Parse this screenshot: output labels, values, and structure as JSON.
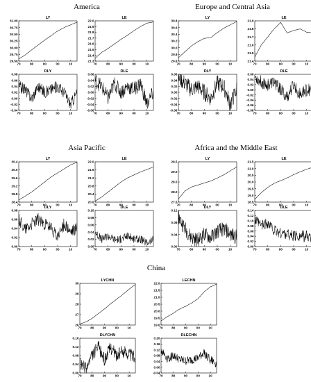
{
  "figure": {
    "regions": [
      {
        "title": "America"
      },
      {
        "title": "Europe and Central Asia"
      },
      {
        "title": "Asia Pacific"
      },
      {
        "title": "Africa and the Middle East"
      },
      {
        "title": "China"
      }
    ]
  },
  "chart_data": [
    {
      "type": "line",
      "region": "America",
      "title": "LY",
      "x": [
        1970,
        1975,
        1980,
        1985,
        1990,
        1995,
        2000,
        2005,
        2010,
        2015
      ],
      "ylim": [
        29.5,
        31.0
      ],
      "yticks": [
        "29.50",
        "29.75",
        "30.00",
        "30.25",
        "30.50",
        "30.75",
        "31.00"
      ],
      "xticks": [
        "70",
        "80",
        "90",
        "00",
        "10"
      ],
      "values": [
        29.58,
        29.73,
        29.92,
        30.1,
        30.28,
        30.45,
        30.62,
        30.75,
        30.85,
        30.95
      ]
    },
    {
      "type": "line",
      "region": "America",
      "title": "LE",
      "x": [
        1970,
        1975,
        1980,
        1985,
        1990,
        1995,
        2000,
        2005,
        2010,
        2015
      ],
      "ylim": [
        21.3,
        22.0
      ],
      "yticks": [
        "21.3",
        "21.4",
        "21.5",
        "21.6",
        "21.7",
        "21.8",
        "21.9",
        "22.0"
      ],
      "xticks": [
        "70",
        "80",
        "90",
        "00",
        "10"
      ],
      "values": [
        21.35,
        21.45,
        21.52,
        21.6,
        21.68,
        21.75,
        21.83,
        21.9,
        21.96,
        21.98
      ]
    },
    {
      "type": "line",
      "region": "America",
      "title": "DLY",
      "x": [
        1970,
        1975,
        1980,
        1985,
        1990,
        1995,
        2000,
        2005,
        2010,
        2015
      ],
      "ylim": [
        -0.04,
        0.08
      ],
      "yticks": [
        "-0.04",
        "-0.02",
        "0.00",
        "0.02",
        "0.04",
        "0.06",
        "0.08"
      ],
      "xticks": [
        "70",
        "80",
        "90",
        "00",
        "10"
      ],
      "values": [
        0.04,
        0.03,
        0.0,
        0.04,
        0.02,
        0.03,
        0.04,
        0.02,
        -0.02,
        0.02
      ]
    },
    {
      "type": "line",
      "region": "America",
      "title": "DLE",
      "x": [
        1970,
        1975,
        1980,
        1985,
        1990,
        1995,
        2000,
        2005,
        2010,
        2015
      ],
      "ylim": [
        -0.06,
        0.06
      ],
      "yticks": [
        "-0.06",
        "-0.04",
        "-0.02",
        "0.00",
        "0.02",
        "0.04",
        "0.06"
      ],
      "xticks": [
        "70",
        "80",
        "90",
        "00",
        "10"
      ],
      "values": [
        0.04,
        0.02,
        -0.02,
        0.03,
        0.0,
        0.02,
        0.01,
        0.03,
        -0.04,
        0.0
      ]
    },
    {
      "type": "line",
      "region": "Europe and Central Asia",
      "title": "LY",
      "x": [
        1970,
        1975,
        1980,
        1985,
        1990,
        1995,
        2000,
        2005,
        2010,
        2015
      ],
      "ylim": [
        29.6,
        30.8
      ],
      "yticks": [
        "29.6",
        "29.8",
        "30.0",
        "30.2",
        "30.4",
        "30.6",
        "30.8"
      ],
      "xticks": [
        "70",
        "80",
        "90",
        "00",
        "10"
      ],
      "values": [
        29.7,
        29.88,
        30.05,
        30.18,
        30.28,
        30.3,
        30.45,
        30.58,
        30.68,
        30.78
      ]
    },
    {
      "type": "line",
      "region": "Europe and Central Asia",
      "title": "LE",
      "x": [
        1970,
        1975,
        1980,
        1985,
        1990,
        1995,
        2000,
        2005,
        2010,
        2015
      ],
      "ylim": [
        21.4,
        21.9
      ],
      "yticks": [
        "21.4",
        "21.5",
        "21.6",
        "21.7",
        "21.8",
        "21.9"
      ],
      "xticks": [
        "70",
        "80",
        "90",
        "00",
        "10"
      ],
      "values": [
        21.45,
        21.6,
        21.7,
        21.8,
        21.88,
        21.75,
        21.78,
        21.8,
        21.76,
        21.75
      ]
    },
    {
      "type": "line",
      "region": "Europe and Central Asia",
      "title": "DLY",
      "x": [
        1970,
        1975,
        1980,
        1985,
        1990,
        1995,
        2000,
        2005,
        2010,
        2015
      ],
      "ylim": [
        -0.06,
        0.06
      ],
      "yticks": [
        "-0.06",
        "-0.04",
        "-0.02",
        "0.00",
        "0.02",
        "0.04",
        "0.06"
      ],
      "xticks": [
        "70",
        "80",
        "90",
        "00",
        "10"
      ],
      "values": [
        0.05,
        0.03,
        0.01,
        0.02,
        0.0,
        -0.02,
        0.03,
        0.02,
        -0.04,
        0.01
      ]
    },
    {
      "type": "line",
      "region": "Europe and Central Asia",
      "title": "DLE",
      "x": [
        1970,
        1975,
        1980,
        1985,
        1990,
        1995,
        2000,
        2005,
        2010,
        2015
      ],
      "ylim": [
        -0.08,
        0.06
      ],
      "yticks": [
        "-0.08",
        "-0.06",
        "-0.04",
        "-0.02",
        "0.00",
        "0.02",
        "0.04",
        "0.06"
      ],
      "xticks": [
        "70",
        "80",
        "90",
        "00",
        "10"
      ],
      "values": [
        0.05,
        0.03,
        0.02,
        0.03,
        0.0,
        -0.03,
        0.02,
        -0.02,
        0.0,
        0.0
      ]
    },
    {
      "type": "line",
      "region": "Asia Pacific",
      "title": "LY",
      "x": [
        1970,
        1975,
        1980,
        1985,
        1990,
        1995,
        2000,
        2005,
        2010,
        2015
      ],
      "ylim": [
        28.4,
        30.4
      ],
      "yticks": [
        "28.4",
        "28.8",
        "29.2",
        "29.6",
        "30.0",
        "30.4"
      ],
      "xticks": [
        "70",
        "80",
        "90",
        "00",
        "10"
      ],
      "values": [
        28.5,
        28.7,
        28.9,
        29.15,
        29.4,
        29.65,
        29.85,
        30.05,
        30.25,
        30.38
      ]
    },
    {
      "type": "line",
      "region": "Asia Pacific",
      "title": "LE",
      "x": [
        1970,
        1975,
        1980,
        1985,
        1990,
        1995,
        2000,
        2005,
        2010,
        2015
      ],
      "ylim": [
        20.0,
        22.0
      ],
      "yticks": [
        "20.0",
        "20.4",
        "20.8",
        "21.2",
        "21.6",
        "22.0"
      ],
      "xticks": [
        "70",
        "80",
        "90",
        "00",
        "10"
      ],
      "values": [
        20.05,
        20.25,
        20.5,
        20.75,
        21.0,
        21.2,
        21.35,
        21.5,
        21.62,
        21.75
      ]
    },
    {
      "type": "line",
      "region": "Asia Pacific",
      "title": "DLY",
      "x": [
        1970,
        1975,
        1980,
        1985,
        1990,
        1995,
        2000,
        2005,
        2010,
        2015
      ],
      "ylim": [
        0.0,
        0.08
      ],
      "yticks": [
        "0.00",
        "0.02",
        "0.04",
        "0.06",
        "0.08"
      ],
      "xticks": [
        "70",
        "80",
        "90",
        "00",
        "10"
      ],
      "values": [
        0.06,
        0.04,
        0.05,
        0.06,
        0.05,
        0.04,
        0.02,
        0.05,
        0.03,
        0.04
      ]
    },
    {
      "type": "line",
      "region": "Asia Pacific",
      "title": "DLE",
      "x": [
        1970,
        1975,
        1980,
        1985,
        1990,
        1995,
        2000,
        2005,
        2010,
        2015
      ],
      "ylim": [
        0.0,
        0.1
      ],
      "yticks": [
        "0.00",
        "0.02",
        "0.04",
        "0.06",
        "0.08",
        "0.10"
      ],
      "xticks": [
        "70",
        "80",
        "90",
        "00",
        "10"
      ],
      "values": [
        0.04,
        0.02,
        0.03,
        0.02,
        0.02,
        0.03,
        0.02,
        0.02,
        0.01,
        0.02
      ]
    },
    {
      "type": "line",
      "region": "Africa and the Middle East",
      "title": "LY",
      "x": [
        1970,
        1975,
        1980,
        1985,
        1990,
        1995,
        2000,
        2005,
        2010,
        2015
      ],
      "ylim": [
        27.5,
        29.5
      ],
      "yticks": [
        "27.5",
        "28.0",
        "28.5",
        "29.0",
        "29.5"
      ],
      "xticks": [
        "70",
        "80",
        "90",
        "00",
        "10"
      ],
      "values": [
        27.65,
        28.05,
        28.25,
        28.35,
        28.45,
        28.55,
        28.7,
        28.85,
        29.05,
        29.25
      ]
    },
    {
      "type": "line",
      "region": "Africa and the Middle East",
      "title": "LE",
      "x": [
        1970,
        1975,
        1980,
        1985,
        1990,
        1995,
        2000,
        2005,
        2010,
        2015
      ],
      "ylim": [
        18.5,
        21.5
      ],
      "yticks": [
        "18.5",
        "19.0",
        "19.5",
        "20.0",
        "20.5",
        "21.0",
        "21.5"
      ],
      "xticks": [
        "70",
        "80",
        "90",
        "00",
        "10"
      ],
      "values": [
        18.7,
        19.2,
        19.6,
        19.9,
        20.1,
        20.3,
        20.55,
        20.75,
        20.95,
        21.1
      ]
    },
    {
      "type": "line",
      "region": "Africa and the Middle East",
      "title": "DLY",
      "x": [
        1970,
        1975,
        1980,
        1985,
        1990,
        1995,
        2000,
        2005,
        2010,
        2015
      ],
      "ylim": [
        0.0,
        0.12
      ],
      "yticks": [
        "0.00",
        "0.04",
        "0.08",
        "0.12"
      ],
      "xticks": [
        "70",
        "80",
        "90",
        "00",
        "10"
      ],
      "values": [
        0.1,
        0.06,
        0.03,
        0.02,
        0.04,
        0.03,
        0.05,
        0.06,
        0.04,
        0.03
      ]
    },
    {
      "type": "line",
      "region": "Africa and the Middle East",
      "title": "DLE",
      "x": [
        1970,
        1975,
        1980,
        1985,
        1990,
        1995,
        2000,
        2005,
        2010,
        2015
      ],
      "ylim": [
        0.0,
        0.14
      ],
      "yticks": [
        "0.00",
        "0.02",
        "0.04",
        "0.06",
        "0.08",
        "0.10",
        "0.12",
        "0.14"
      ],
      "xticks": [
        "70",
        "80",
        "90",
        "00",
        "10"
      ],
      "values": [
        0.1,
        0.08,
        0.09,
        0.06,
        0.05,
        0.05,
        0.04,
        0.04,
        0.04,
        0.03
      ]
    },
    {
      "type": "line",
      "region": "China",
      "title": "LYCHN",
      "x": [
        1970,
        1975,
        1980,
        1985,
        1990,
        1995,
        2000,
        2005,
        2010,
        2015
      ],
      "ylim": [
        26,
        30
      ],
      "yticks": [
        "26",
        "27",
        "28",
        "29",
        "30"
      ],
      "xticks": [
        "70",
        "80",
        "90",
        "00",
        "10"
      ],
      "values": [
        26.1,
        26.3,
        26.65,
        27.1,
        27.55,
        28.05,
        28.5,
        28.95,
        29.45,
        29.9
      ]
    },
    {
      "type": "line",
      "region": "China",
      "title": "LECHN",
      "x": [
        1970,
        1975,
        1980,
        1985,
        1990,
        1995,
        2000,
        2005,
        2010,
        2015
      ],
      "ylim": [
        19.0,
        22.0
      ],
      "yticks": [
        "19.0",
        "19.5",
        "20.0",
        "20.5",
        "21.0",
        "21.5",
        "22.0"
      ],
      "xticks": [
        "70",
        "80",
        "90",
        "00",
        "10"
      ],
      "values": [
        19.3,
        19.6,
        19.85,
        20.15,
        20.35,
        20.6,
        20.9,
        21.4,
        21.75,
        21.95
      ]
    },
    {
      "type": "line",
      "region": "China",
      "title": "DLYCHN",
      "x": [
        1970,
        1975,
        1980,
        1985,
        1990,
        1995,
        2000,
        2005,
        2010,
        2015
      ],
      "ylim": [
        0.0,
        0.16
      ],
      "yticks": [
        "0.00",
        "0.04",
        "0.08",
        "0.12",
        "0.16"
      ],
      "xticks": [
        "70",
        "80",
        "90",
        "00",
        "10"
      ],
      "values": [
        0.04,
        0.02,
        0.08,
        0.12,
        0.06,
        0.12,
        0.08,
        0.1,
        0.09,
        0.07
      ]
    },
    {
      "type": "line",
      "region": "China",
      "title": "DLECHN",
      "x": [
        1970,
        1975,
        1980,
        1985,
        1990,
        1995,
        2000,
        2005,
        2010,
        2015
      ],
      "ylim": [
        -0.04,
        0.2
      ],
      "yticks": [
        "-0.04",
        "0.00",
        "0.04",
        "0.08",
        "0.12",
        "0.16",
        "0.20"
      ],
      "xticks": [
        "70",
        "80",
        "90",
        "00",
        "10"
      ],
      "values": [
        0.12,
        0.06,
        0.08,
        0.05,
        0.04,
        0.05,
        0.06,
        0.1,
        0.05,
        0.02
      ]
    }
  ]
}
